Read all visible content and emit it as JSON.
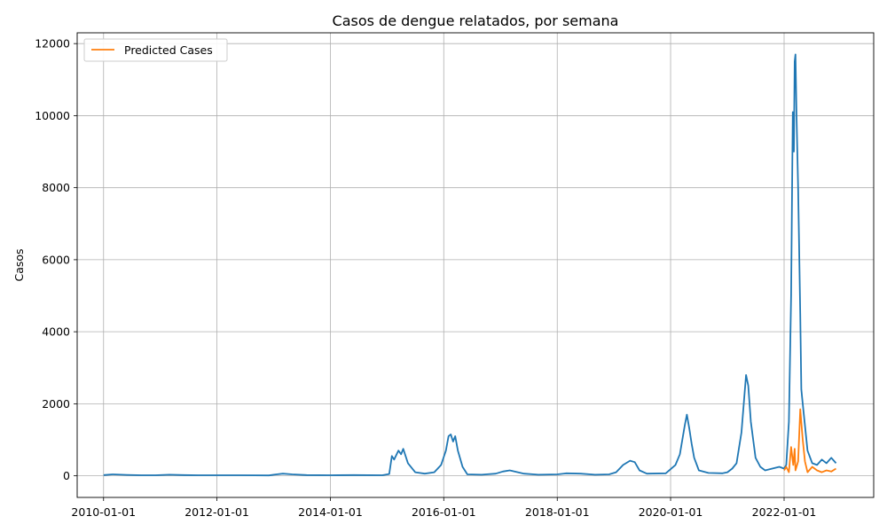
{
  "chart_data": {
    "type": "line",
    "title": "Casos de dengue relatados, por semana",
    "xlabel": "",
    "ylabel": "Casos",
    "xlim": [
      "2009-07-15",
      "2023-08-01"
    ],
    "ylim": [
      -600,
      12300
    ],
    "grid": true,
    "legend_position": "top-left",
    "x_ticks": [
      "2010-01-01",
      "2012-01-01",
      "2014-01-01",
      "2016-01-01",
      "2018-01-01",
      "2020-01-01",
      "2022-01-01"
    ],
    "y_ticks": [
      0,
      2000,
      4000,
      6000,
      8000,
      10000,
      12000
    ],
    "series": [
      {
        "name": "",
        "color": "#1f77b4",
        "points": [
          [
            "2010-01-01",
            20
          ],
          [
            "2010-03-01",
            40
          ],
          [
            "2010-06-01",
            25
          ],
          [
            "2010-09-01",
            15
          ],
          [
            "2010-12-01",
            15
          ],
          [
            "2011-03-01",
            30
          ],
          [
            "2011-06-01",
            20
          ],
          [
            "2011-09-01",
            15
          ],
          [
            "2012-01-01",
            15
          ],
          [
            "2012-06-01",
            15
          ],
          [
            "2012-12-01",
            10
          ],
          [
            "2013-01-01",
            30
          ],
          [
            "2013-03-01",
            60
          ],
          [
            "2013-05-01",
            40
          ],
          [
            "2013-08-01",
            20
          ],
          [
            "2014-01-01",
            15
          ],
          [
            "2014-06-01",
            20
          ],
          [
            "2014-12-01",
            15
          ],
          [
            "2015-01-15",
            50
          ],
          [
            "2015-02-01",
            550
          ],
          [
            "2015-02-15",
            450
          ],
          [
            "2015-03-15",
            700
          ],
          [
            "2015-04-01",
            600
          ],
          [
            "2015-04-15",
            750
          ],
          [
            "2015-05-15",
            350
          ],
          [
            "2015-07-01",
            100
          ],
          [
            "2015-09-01",
            60
          ],
          [
            "2015-11-01",
            100
          ],
          [
            "2015-12-15",
            300
          ],
          [
            "2016-01-15",
            700
          ],
          [
            "2016-02-01",
            1100
          ],
          [
            "2016-02-15",
            1150
          ],
          [
            "2016-03-01",
            950
          ],
          [
            "2016-03-15",
            1100
          ],
          [
            "2016-04-01",
            700
          ],
          [
            "2016-05-01",
            250
          ],
          [
            "2016-06-01",
            40
          ],
          [
            "2016-09-01",
            30
          ],
          [
            "2016-12-01",
            60
          ],
          [
            "2017-01-15",
            120
          ],
          [
            "2017-03-01",
            150
          ],
          [
            "2017-06-01",
            60
          ],
          [
            "2017-09-01",
            30
          ],
          [
            "2018-01-01",
            40
          ],
          [
            "2018-03-01",
            70
          ],
          [
            "2018-06-01",
            60
          ],
          [
            "2018-09-01",
            30
          ],
          [
            "2018-12-01",
            40
          ],
          [
            "2019-01-15",
            100
          ],
          [
            "2019-03-01",
            300
          ],
          [
            "2019-04-15",
            420
          ],
          [
            "2019-05-15",
            380
          ],
          [
            "2019-06-15",
            150
          ],
          [
            "2019-08-01",
            60
          ],
          [
            "2019-12-01",
            70
          ],
          [
            "2020-02-01",
            300
          ],
          [
            "2020-03-01",
            600
          ],
          [
            "2020-04-01",
            1400
          ],
          [
            "2020-04-15",
            1700
          ],
          [
            "2020-05-01",
            1300
          ],
          [
            "2020-05-15",
            900
          ],
          [
            "2020-06-01",
            500
          ],
          [
            "2020-07-01",
            150
          ],
          [
            "2020-09-01",
            80
          ],
          [
            "2020-12-01",
            70
          ],
          [
            "2021-01-01",
            100
          ],
          [
            "2021-02-01",
            200
          ],
          [
            "2021-03-01",
            350
          ],
          [
            "2021-04-01",
            1200
          ],
          [
            "2021-05-01",
            2800
          ],
          [
            "2021-05-15",
            2500
          ],
          [
            "2021-06-01",
            1500
          ],
          [
            "2021-07-01",
            500
          ],
          [
            "2021-08-01",
            250
          ],
          [
            "2021-09-01",
            150
          ],
          [
            "2021-12-01",
            250
          ],
          [
            "2022-01-01",
            200
          ],
          [
            "2022-01-15",
            300
          ],
          [
            "2022-02-01",
            1500
          ],
          [
            "2022-02-15",
            5000
          ],
          [
            "2022-02-26",
            10100
          ],
          [
            "2022-03-05",
            9000
          ],
          [
            "2022-03-10",
            11500
          ],
          [
            "2022-03-15",
            11700
          ],
          [
            "2022-03-22",
            10000
          ],
          [
            "2022-04-01",
            8000
          ],
          [
            "2022-04-15",
            4500
          ],
          [
            "2022-04-22",
            2400
          ],
          [
            "2022-05-01",
            2000
          ],
          [
            "2022-06-01",
            700
          ],
          [
            "2022-07-01",
            350
          ],
          [
            "2022-08-01",
            300
          ],
          [
            "2022-09-01",
            450
          ],
          [
            "2022-10-01",
            350
          ],
          [
            "2022-11-01",
            500
          ],
          [
            "2022-12-01",
            350
          ]
        ]
      },
      {
        "name": "Predicted Cases",
        "color": "#ff7f0e",
        "points": [
          [
            "2022-01-01",
            150
          ],
          [
            "2022-01-15",
            250
          ],
          [
            "2022-02-01",
            100
          ],
          [
            "2022-02-15",
            800
          ],
          [
            "2022-03-01",
            300
          ],
          [
            "2022-03-10",
            750
          ],
          [
            "2022-03-15",
            150
          ],
          [
            "2022-04-01",
            400
          ],
          [
            "2022-04-15",
            1850
          ],
          [
            "2022-05-01",
            1000
          ],
          [
            "2022-05-15",
            400
          ],
          [
            "2022-06-01",
            100
          ],
          [
            "2022-07-01",
            250
          ],
          [
            "2022-08-01",
            150
          ],
          [
            "2022-09-01",
            100
          ],
          [
            "2022-10-01",
            150
          ],
          [
            "2022-11-01",
            120
          ],
          [
            "2022-12-01",
            200
          ]
        ]
      }
    ]
  }
}
